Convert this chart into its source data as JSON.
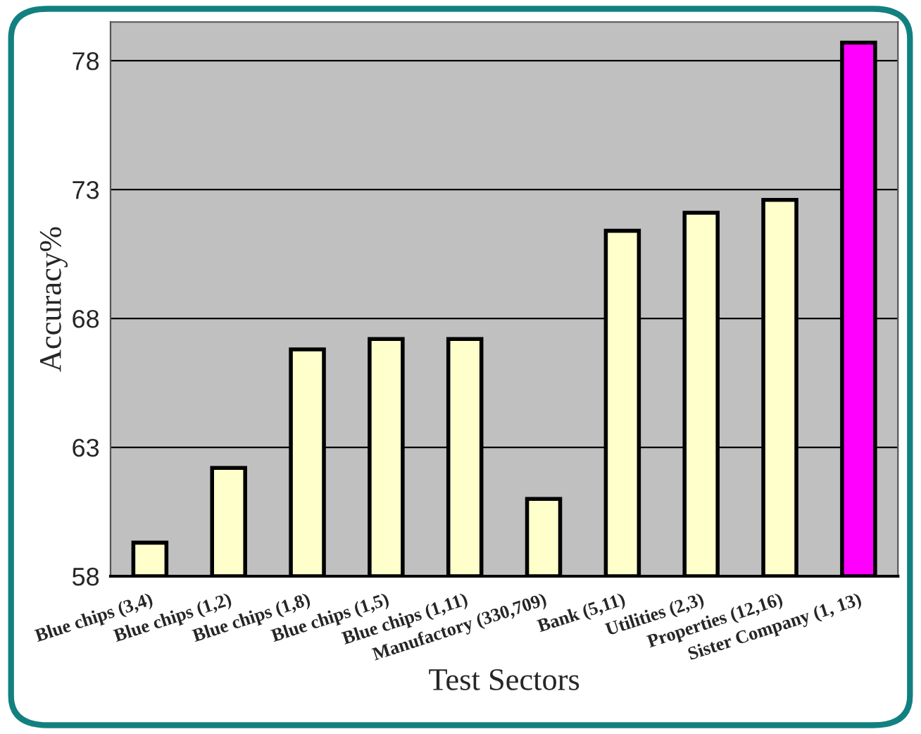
{
  "chart_data": {
    "type": "bar",
    "xlabel": "Test Sectors",
    "ylabel": "Accuracy%",
    "categories": [
      "Blue chips (3,4)",
      "Blue chips (1,2)",
      "Blue chips (1,8)",
      "Blue chips (1,5)",
      "Blue chips (1,11)",
      "Manufactory (330,709)",
      "Bank (5,11)",
      "Utilities (2,3)",
      "Properties (12,16)",
      "Sister Company (1, 13)"
    ],
    "values": [
      59.3,
      62.2,
      66.8,
      67.2,
      67.2,
      61.0,
      71.4,
      72.1,
      72.6,
      78.7
    ],
    "colors": [
      "#ffffcc",
      "#ffffcc",
      "#ffffcc",
      "#ffffcc",
      "#ffffcc",
      "#ffffcc",
      "#ffffcc",
      "#ffffcc",
      "#ffffcc",
      "#ff00ff"
    ],
    "ylim": [
      58,
      79.5
    ],
    "yticks": [
      58,
      63,
      68,
      73,
      78
    ],
    "grid": "y",
    "legend": false
  }
}
